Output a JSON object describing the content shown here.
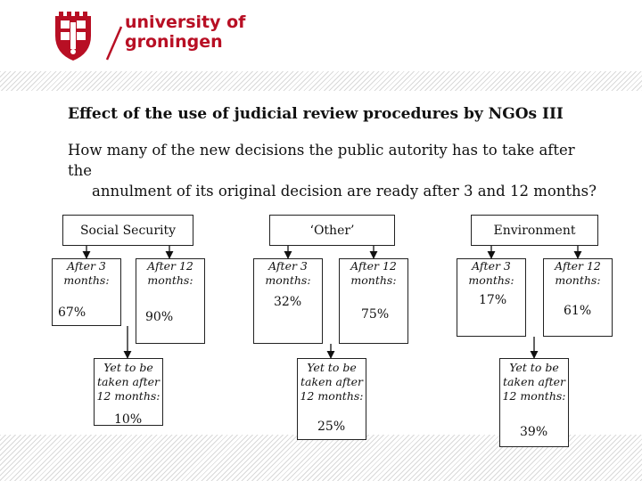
{
  "logo": {
    "line1": "university of",
    "line2": "groningen"
  },
  "title": "Effect of the use of judicial review procedures by NGOs III",
  "question": {
    "line1": "How many of the new decisions the public autority has to take after the",
    "line2": "annulment of its original decision are ready after 3 and 12 months?"
  },
  "groups": [
    {
      "category": "Social Security",
      "after3_label": "After 3 months:",
      "after3_pct": "67%",
      "after12_label": "After 12 months:",
      "after12_pct": "90%",
      "yet_label": "Yet to be taken after 12 months:",
      "yet_pct": "10%"
    },
    {
      "category": "‘Other’",
      "after3_label": "After 3 months:",
      "after3_pct": "32%",
      "after12_label": "After 12 months:",
      "after12_pct": "75%",
      "yet_label": "Yet to be taken after 12 months:",
      "yet_pct": "25%"
    },
    {
      "category": "Environment",
      "after3_label": "After 3 months:",
      "after3_pct": "17%",
      "after12_label": "After 12 months:",
      "after12_pct": "61%",
      "yet_label": "Yet to be taken after 12 months:",
      "yet_pct": "39%"
    }
  ]
}
